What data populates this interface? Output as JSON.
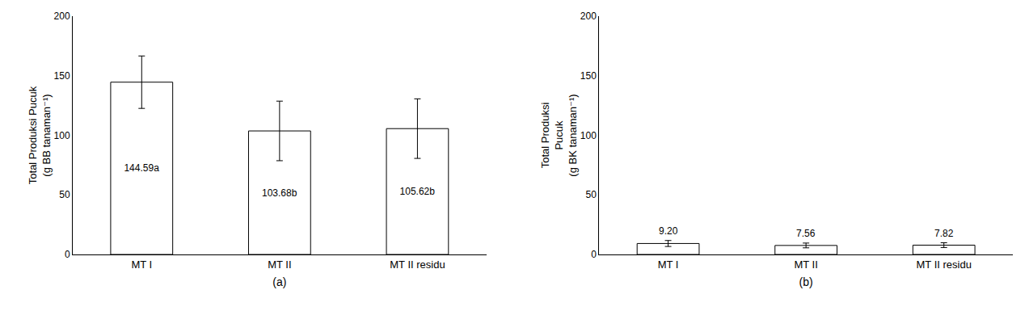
{
  "chart_data": [
    {
      "type": "bar",
      "categories": [
        "MT I",
        "MT II",
        "MT II residu"
      ],
      "values": [
        144.59,
        103.68,
        105.62
      ],
      "errors": [
        22.0,
        25.0,
        25.0
      ],
      "value_labels": [
        "144.59a",
        "103.68b",
        "105.62b"
      ],
      "ylabel": "Total Produksi Pucuk\n(g BB tanaman⁻¹)",
      "xlabel": "(a)",
      "ylim": [
        0,
        200
      ],
      "yticks": [
        0,
        50,
        100,
        150,
        200
      ],
      "color": "white",
      "grid": false,
      "data_labels": true
    },
    {
      "type": "bar",
      "categories": [
        "MT I",
        "MT II",
        "MT II residu"
      ],
      "values": [
        9.2,
        7.56,
        7.82
      ],
      "errors": [
        2.5,
        2.0,
        2.0
      ],
      "value_labels": [
        "9.20",
        "7.56",
        "7.82"
      ],
      "ylabel": "Total Produksi\nPucuk\n(g BK tanaman⁻¹)",
      "xlabel": "(b)",
      "ylim": [
        0,
        200
      ],
      "yticks": [
        0,
        50,
        100,
        150,
        200
      ],
      "color": "white",
      "grid": false,
      "data_labels": true
    }
  ]
}
